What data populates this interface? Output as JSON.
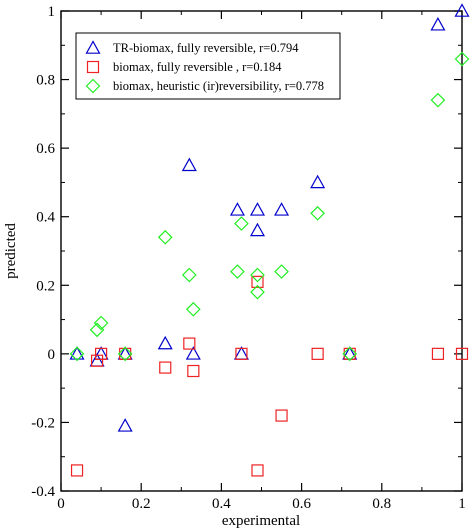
{
  "chart_data": {
    "type": "scatter",
    "xlabel": "experimental",
    "ylabel": "predicted",
    "xlim": [
      0,
      1
    ],
    "ylim": [
      -0.4,
      1
    ],
    "x_ticks": [
      {
        "value": 0,
        "label": "0"
      },
      {
        "value": 0.2,
        "label": "0.2"
      },
      {
        "value": 0.4,
        "label": "0.4"
      },
      {
        "value": 0.6,
        "label": "0.6"
      },
      {
        "value": 0.8,
        "label": "0.8"
      },
      {
        "value": 1,
        "label": "1"
      }
    ],
    "y_ticks": [
      {
        "value": -0.4,
        "label": "-0.4"
      },
      {
        "value": -0.2,
        "label": "-0.2"
      },
      {
        "value": 0,
        "label": "0"
      },
      {
        "value": 0.2,
        "label": "0.2"
      },
      {
        "value": 0.4,
        "label": "0.4"
      },
      {
        "value": 0.6,
        "label": "0.6"
      },
      {
        "value": 0.8,
        "label": "0.8"
      },
      {
        "value": 1,
        "label": "1"
      }
    ],
    "grid": false,
    "legend_position": "top-left",
    "series": [
      {
        "name": "TR-biomax, fully reversible, r=0.794",
        "marker": "triangle",
        "color": "#0000cc",
        "points": [
          [
            0.04,
            0.0
          ],
          [
            0.09,
            -0.02
          ],
          [
            0.1,
            0.0
          ],
          [
            0.16,
            0.0
          ],
          [
            0.16,
            -0.21
          ],
          [
            0.26,
            0.03
          ],
          [
            0.32,
            0.55
          ],
          [
            0.33,
            0.0
          ],
          [
            0.44,
            0.42
          ],
          [
            0.45,
            0.0
          ],
          [
            0.49,
            0.42
          ],
          [
            0.49,
            0.36
          ],
          [
            0.55,
            0.42
          ],
          [
            0.64,
            0.5
          ],
          [
            0.72,
            0.0
          ],
          [
            0.94,
            0.96
          ],
          [
            1.0,
            1.0
          ]
        ]
      },
      {
        "name": "biomax, fully reversible , r=0.184",
        "marker": "square",
        "color": "#ee2222",
        "points": [
          [
            0.04,
            -0.34
          ],
          [
            0.09,
            -0.02
          ],
          [
            0.1,
            0.0
          ],
          [
            0.16,
            0.0
          ],
          [
            0.26,
            -0.04
          ],
          [
            0.32,
            0.03
          ],
          [
            0.33,
            -0.05
          ],
          [
            0.45,
            0.0
          ],
          [
            0.49,
            0.21
          ],
          [
            0.49,
            -0.34
          ],
          [
            0.55,
            -0.18
          ],
          [
            0.64,
            0.0
          ],
          [
            0.72,
            0.0
          ],
          [
            0.94,
            0.0
          ],
          [
            1.0,
            0.0
          ]
        ]
      },
      {
        "name": "biomax, heuristic (ir)reversibility, r=0.778",
        "marker": "diamond",
        "color": "#22ee22",
        "points": [
          [
            0.04,
            0.0
          ],
          [
            0.09,
            0.07
          ],
          [
            0.1,
            0.09
          ],
          [
            0.16,
            0.0
          ],
          [
            0.26,
            0.34
          ],
          [
            0.32,
            0.23
          ],
          [
            0.33,
            0.13
          ],
          [
            0.44,
            0.24
          ],
          [
            0.45,
            0.38
          ],
          [
            0.49,
            0.23
          ],
          [
            0.49,
            0.18
          ],
          [
            0.55,
            0.24
          ],
          [
            0.64,
            0.41
          ],
          [
            0.72,
            0.0
          ],
          [
            0.94,
            0.74
          ],
          [
            1.0,
            0.86
          ]
        ]
      }
    ]
  }
}
